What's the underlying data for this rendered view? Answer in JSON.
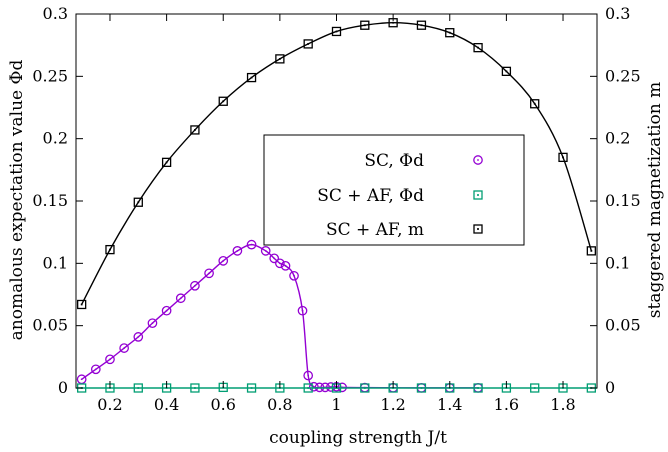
{
  "chart_data": {
    "type": "line",
    "xlabel": "coupling strength J/t",
    "ylabel_left": "anomalous expectation value Φd",
    "ylabel_right": "staggered magnetization m",
    "xlim": [
      0.08,
      1.92
    ],
    "ylim": [
      0,
      0.3
    ],
    "x_ticks": [
      "0.2",
      "0.4",
      "0.6",
      "0.8",
      "1",
      "1.2",
      "1.4",
      "1.6",
      "1.8"
    ],
    "y_ticks": [
      "0",
      "0.05",
      "0.1",
      "0.15",
      "0.2",
      "0.25",
      "0.3"
    ],
    "legend_position": "center-right",
    "series": [
      {
        "name": "SC, Φd",
        "color": "#9400d3",
        "marker": "circle",
        "x": [
          0.1,
          0.15,
          0.2,
          0.25,
          0.3,
          0.35,
          0.4,
          0.45,
          0.5,
          0.55,
          0.6,
          0.65,
          0.7,
          0.75,
          0.78,
          0.8,
          0.82,
          0.85,
          0.88,
          0.9,
          0.92,
          0.94,
          0.96,
          0.98,
          1.0,
          1.02,
          1.1,
          1.2,
          1.3,
          1.4,
          1.5
        ],
        "values": [
          0.007,
          0.015,
          0.023,
          0.032,
          0.041,
          0.052,
          0.062,
          0.072,
          0.082,
          0.092,
          0.102,
          0.11,
          0.115,
          0.11,
          0.104,
          0.1,
          0.098,
          0.09,
          0.062,
          0.01,
          0.001,
          0.0005,
          0.0005,
          0.0008,
          0.001,
          0.0005,
          0.0003,
          0.0002,
          0.0001,
          0.0001,
          0.0001
        ]
      },
      {
        "name": "SC + AF, Φd",
        "color": "#009e73",
        "marker": "square",
        "x": [
          0.1,
          0.2,
          0.3,
          0.4,
          0.5,
          0.6,
          0.7,
          0.8,
          0.9,
          1.0,
          1.1,
          1.2,
          1.3,
          1.4,
          1.5,
          1.6,
          1.7,
          1.8,
          1.9
        ],
        "values": [
          0.0,
          0.0,
          0.0,
          0.0,
          0.0,
          0.0005,
          0.0,
          0.0,
          0.0,
          0.0,
          0.0,
          0.0,
          0.0,
          0.0,
          0.0,
          0.0,
          0.0,
          0.0,
          0.0
        ]
      },
      {
        "name": "SC + AF, m",
        "color": "#000000",
        "marker": "square",
        "x": [
          0.1,
          0.2,
          0.3,
          0.4,
          0.5,
          0.6,
          0.7,
          0.8,
          0.9,
          1.0,
          1.1,
          1.2,
          1.3,
          1.4,
          1.5,
          1.6,
          1.7,
          1.8,
          1.9
        ],
        "values": [
          0.067,
          0.111,
          0.149,
          0.181,
          0.207,
          0.23,
          0.249,
          0.264,
          0.276,
          0.286,
          0.291,
          0.293,
          0.291,
          0.285,
          0.273,
          0.254,
          0.228,
          0.185,
          0.11
        ]
      }
    ]
  }
}
